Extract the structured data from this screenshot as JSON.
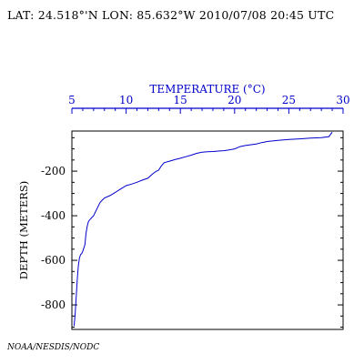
{
  "header": {
    "location_line": "LAT: 24.518°'N LON: 85.632°W 2010/07/08 20:45 UTC"
  },
  "footer": {
    "credit": "NOAA/NESDIS/NODC"
  },
  "colors": {
    "profile": "#0000cc",
    "top_axis": "#0000cc",
    "frame": "#000000"
  },
  "chart_data": {
    "type": "line",
    "title": "",
    "xlabel": "TEMPERATURE (°C)",
    "ylabel": "DEPTH (METERS)",
    "xlim": [
      5,
      30
    ],
    "ylim": [
      -910,
      -20
    ],
    "x_axis_position": "top",
    "x_ticks": [
      "5",
      "10",
      "15",
      "20",
      "25",
      "30"
    ],
    "y_ticks": [
      "-200",
      "-400",
      "-600",
      "-800"
    ],
    "grid": false,
    "series": [
      {
        "name": "",
        "temperature": [
          29.0,
          28.7,
          28.0,
          27.0,
          26.0,
          25.0,
          24.0,
          23.0,
          22.5,
          22.0,
          21.0,
          20.5,
          20.0,
          19.5,
          19.0,
          18.5,
          18.0,
          17.5,
          17.0,
          16.5,
          16.0,
          15.5,
          15.0,
          14.5,
          14.0,
          13.5,
          13.2,
          13.0,
          12.8,
          12.5,
          12.0,
          11.5,
          11.0,
          10.5,
          10.0,
          9.5,
          9.0,
          8.5,
          8.0,
          7.8,
          7.6,
          7.5,
          7.4,
          7.2,
          7.0,
          6.8,
          6.7,
          6.6,
          6.5,
          6.4,
          6.3,
          6.2,
          6.0,
          5.9,
          5.8,
          5.7,
          5.6,
          5.5,
          5.4,
          5.3,
          5.2
        ],
        "depth": [
          -25,
          -45,
          -50,
          -52,
          -55,
          -58,
          -62,
          -67,
          -72,
          -78,
          -85,
          -90,
          -100,
          -105,
          -108,
          -110,
          -112,
          -113,
          -115,
          -120,
          -128,
          -135,
          -142,
          -148,
          -155,
          -162,
          -180,
          -195,
          -200,
          -210,
          -232,
          -240,
          -250,
          -258,
          -265,
          -280,
          -295,
          -310,
          -320,
          -330,
          -340,
          -350,
          -360,
          -380,
          -400,
          -410,
          -415,
          -420,
          -430,
          -450,
          -480,
          -530,
          -560,
          -570,
          -575,
          -590,
          -620,
          -680,
          -760,
          -840,
          -895
        ]
      }
    ]
  }
}
